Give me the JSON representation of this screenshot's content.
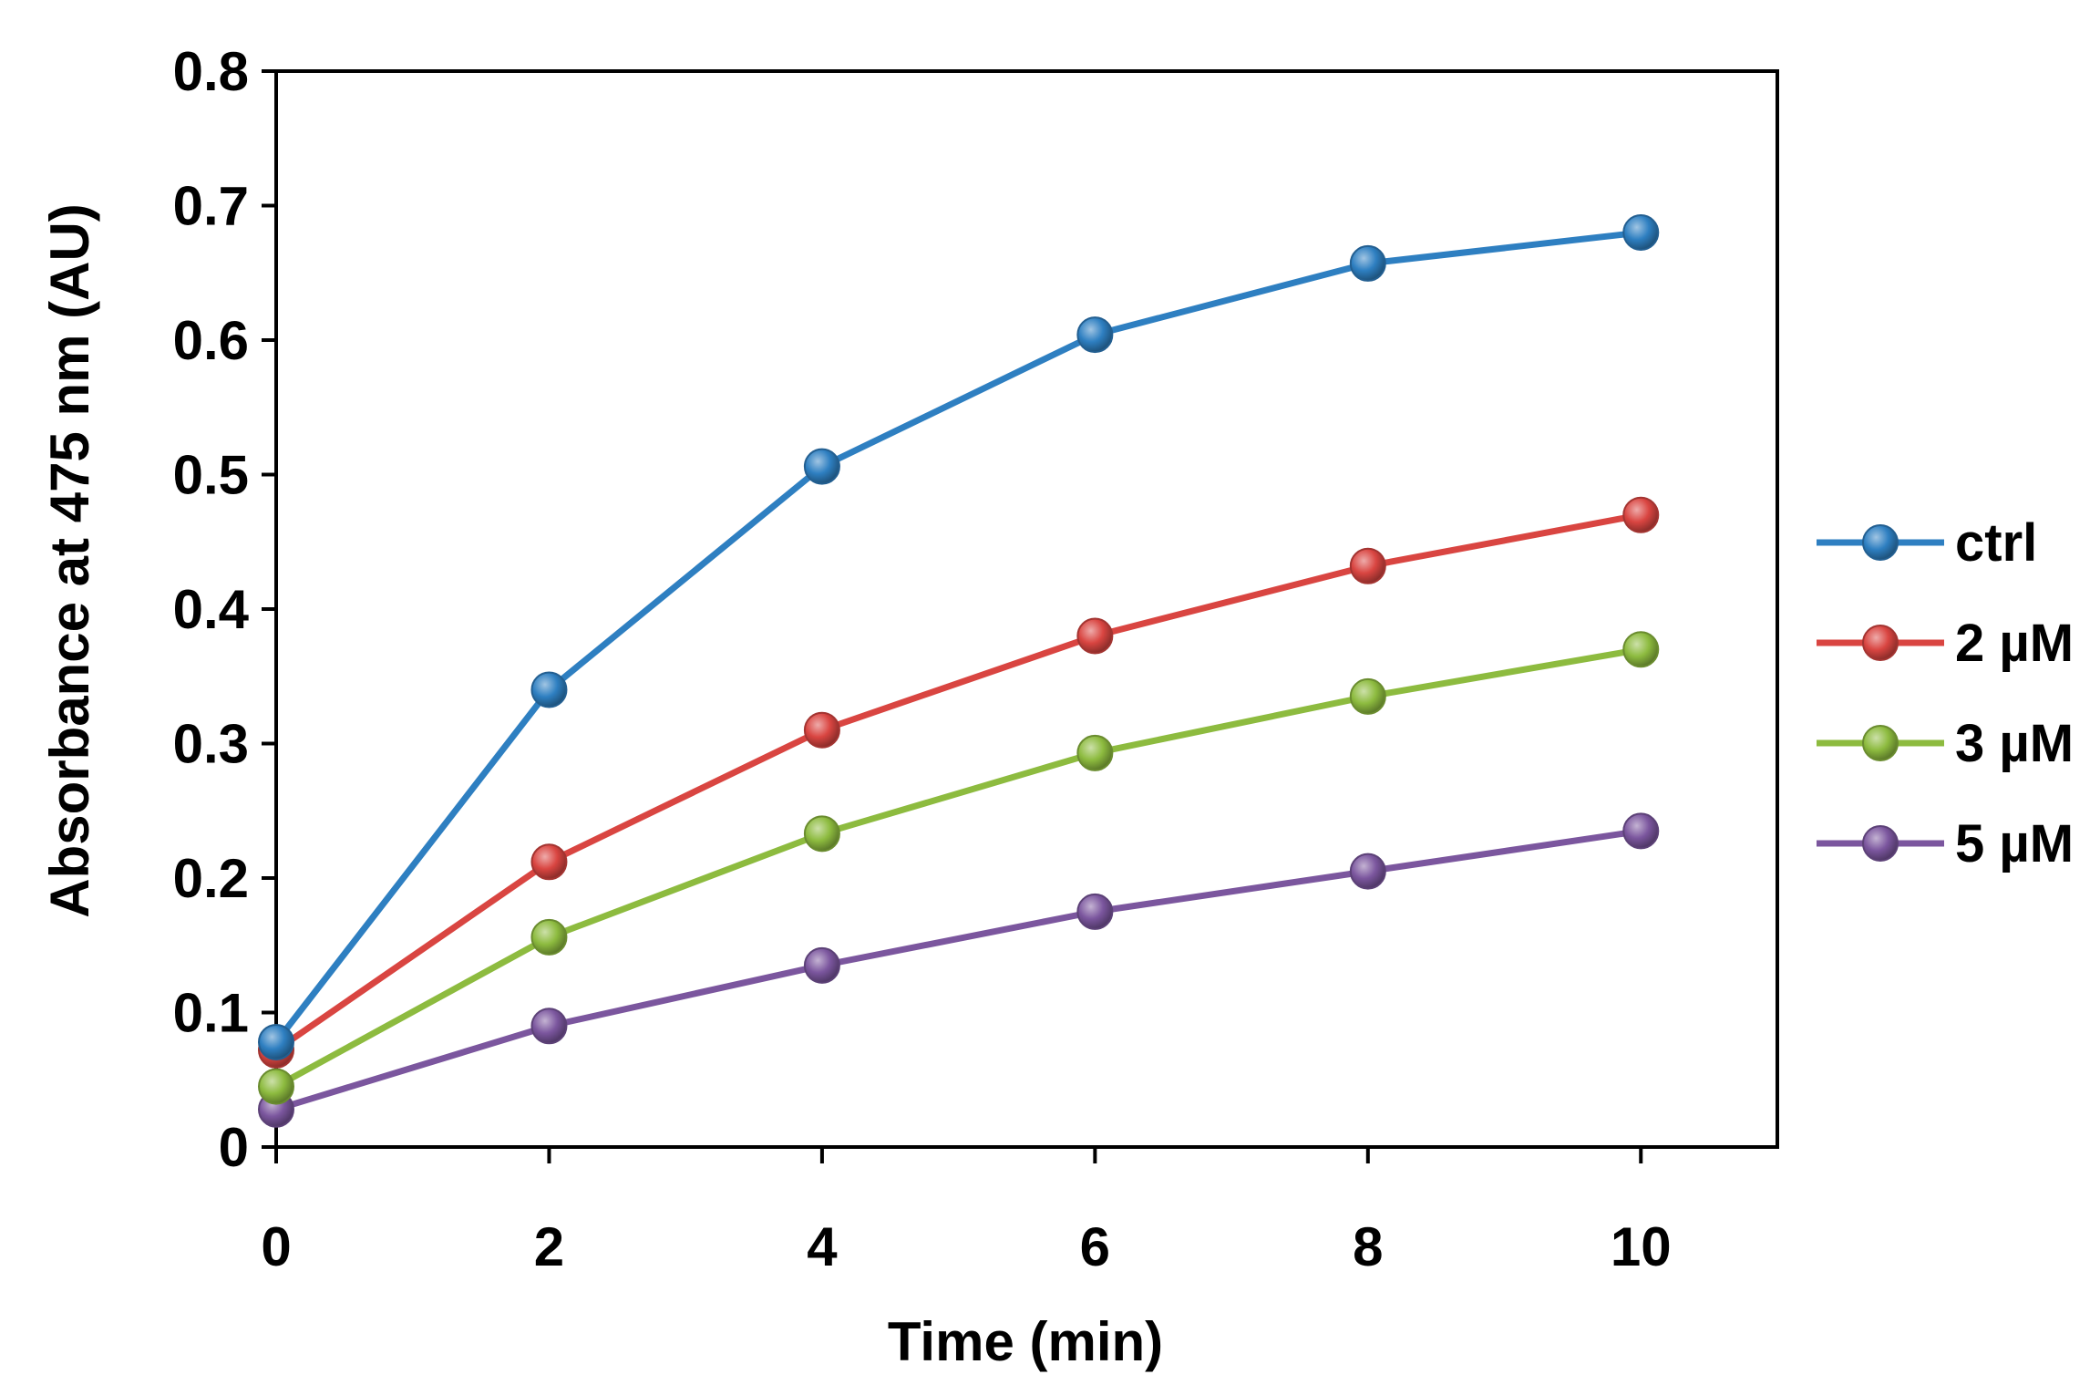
{
  "chart_data": {
    "type": "line",
    "title": "",
    "xlabel": "Time (min)",
    "ylabel": "Absorbance  at  475 nm (AU)",
    "x": [
      0,
      2,
      4,
      6,
      8,
      10
    ],
    "xlim": [
      0,
      11
    ],
    "ylim": [
      0,
      0.8
    ],
    "xticks": [
      0,
      2,
      4,
      6,
      8,
      10
    ],
    "xtick_labels": [
      "0",
      "2",
      "4",
      "6",
      "8",
      "10"
    ],
    "yticks": [
      0,
      0.1,
      0.2,
      0.3,
      0.4,
      0.5,
      0.6,
      0.7,
      0.8
    ],
    "ytick_labels": [
      "0",
      "0.1",
      "0.2",
      "0.3",
      "0.4",
      "0.5",
      "0.6",
      "0.7",
      "0.8"
    ],
    "grid": false,
    "legend_position": "right",
    "series": [
      {
        "name": "ctrl",
        "color": "#2e7fc1",
        "values": [
          0.078,
          0.34,
          0.506,
          0.604,
          0.657,
          0.68
        ]
      },
      {
        "name": "2 µM",
        "color": "#d94541",
        "values": [
          0.072,
          0.212,
          0.31,
          0.38,
          0.432,
          0.47
        ]
      },
      {
        "name": "3 µM",
        "color": "#8dbb3f",
        "values": [
          0.045,
          0.156,
          0.233,
          0.293,
          0.335,
          0.37
        ]
      },
      {
        "name": "5 µM",
        "color": "#7b569e",
        "values": [
          0.028,
          0.09,
          0.135,
          0.175,
          0.205,
          0.235
        ]
      }
    ]
  }
}
